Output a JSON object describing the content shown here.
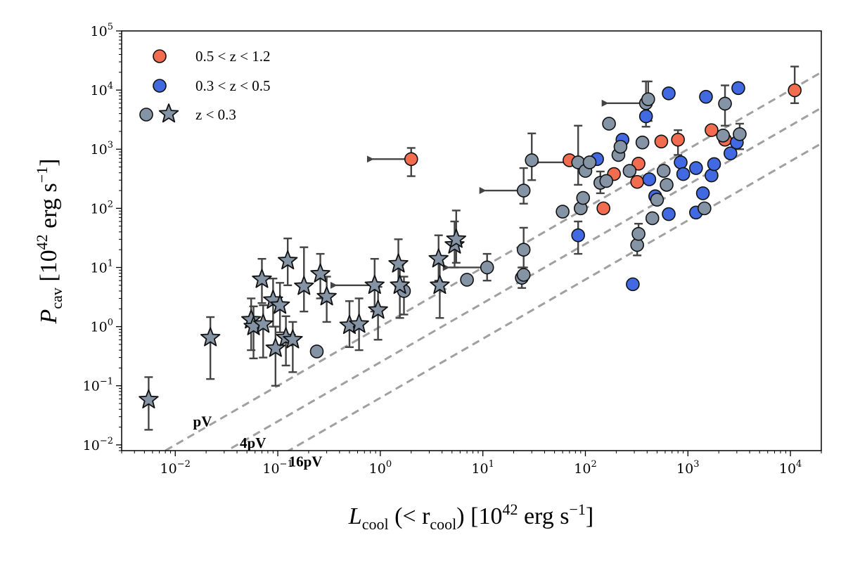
{
  "chart_data": {
    "type": "scatter",
    "xlabel": "L_cool (< r_cool) [10^42 erg s^-1]",
    "ylabel": "P_cav [10^42 erg s^-1]",
    "x_scale": "log",
    "y_scale": "log",
    "xlim": [
      0.003,
      20000
    ],
    "ylim": [
      0.008,
      100000
    ],
    "x_ticks": [
      {
        "value": 0.01,
        "base": "10",
        "exp": "−2"
      },
      {
        "value": 0.1,
        "base": "10",
        "exp": "−1"
      },
      {
        "value": 1,
        "base": "10",
        "exp": "0"
      },
      {
        "value": 10,
        "base": "10",
        "exp": "1"
      },
      {
        "value": 100,
        "base": "10",
        "exp": "2"
      },
      {
        "value": 1000,
        "base": "10",
        "exp": "3"
      },
      {
        "value": 10000,
        "base": "10",
        "exp": "4"
      }
    ],
    "y_ticks": [
      {
        "value": 0.01,
        "base": "10",
        "exp": "−2"
      },
      {
        "value": 0.1,
        "base": "10",
        "exp": "−1"
      },
      {
        "value": 1,
        "base": "10",
        "exp": "0"
      },
      {
        "value": 10,
        "base": "10",
        "exp": "1"
      },
      {
        "value": 100,
        "base": "10",
        "exp": "2"
      },
      {
        "value": 1000,
        "base": "10",
        "exp": "3"
      },
      {
        "value": 10000,
        "base": "10",
        "exp": "4"
      },
      {
        "value": 100000,
        "base": "10",
        "exp": "5"
      }
    ],
    "legend": {
      "position": "top-left",
      "entries": [
        {
          "label": "0.5 < z < 1.2",
          "marker": "circle",
          "color": "#f26c4f"
        },
        {
          "label": "0.3 < z < 0.5",
          "marker": "circle",
          "color": "#4169e1"
        },
        {
          "label": "z < 0.3",
          "marker": "circle+star",
          "color": "#8494a4"
        }
      ]
    },
    "reference_lines": [
      {
        "label": "pV",
        "factor": 1
      },
      {
        "label": "4pV",
        "factor": 4
      },
      {
        "label": "16pV",
        "factor": 16
      }
    ],
    "series": [
      {
        "name": "0.5 < z < 1.2",
        "marker": "circle",
        "color": "#f26c4f",
        "points": [
          {
            "x": 2,
            "y": 680,
            "ylo": 350,
            "yhi": 1050,
            "upper_limit_x": true
          },
          {
            "x": 70,
            "y": 650
          },
          {
            "x": 150,
            "y": 100
          },
          {
            "x": 190,
            "y": 380
          },
          {
            "x": 330,
            "y": 570
          },
          {
            "x": 320,
            "y": 280
          },
          {
            "x": 550,
            "y": 1350
          },
          {
            "x": 800,
            "y": 1450,
            "ylo": 800,
            "yhi": 2100
          },
          {
            "x": 1700,
            "y": 2100
          },
          {
            "x": 2300,
            "y": 1450
          },
          {
            "x": 11000,
            "y": 9900,
            "ylo": 6000,
            "yhi": 25000
          }
        ]
      },
      {
        "name": "0.3 < z < 0.5",
        "marker": "circle",
        "color": "#4169e1",
        "points": [
          {
            "x": 85,
            "y": 35,
            "ylo": 17,
            "yhi": 60
          },
          {
            "x": 130,
            "y": 680
          },
          {
            "x": 230,
            "y": 1450
          },
          {
            "x": 290,
            "y": 5.2
          },
          {
            "x": 390,
            "y": 3600
          },
          {
            "x": 420,
            "y": 310
          },
          {
            "x": 480,
            "y": 160
          },
          {
            "x": 650,
            "y": 8800
          },
          {
            "x": 650,
            "y": 80
          },
          {
            "x": 850,
            "y": 600
          },
          {
            "x": 900,
            "y": 380
          },
          {
            "x": 1200,
            "y": 480
          },
          {
            "x": 1200,
            "y": 85
          },
          {
            "x": 1400,
            "y": 180
          },
          {
            "x": 1500,
            "y": 7700
          },
          {
            "x": 1700,
            "y": 360
          },
          {
            "x": 1800,
            "y": 560
          },
          {
            "x": 2600,
            "y": 850
          },
          {
            "x": 3000,
            "y": 1300
          },
          {
            "x": 3100,
            "y": 10800
          }
        ]
      },
      {
        "name": "z < 0.3 (circles)",
        "marker": "circle",
        "color": "#8494a4",
        "points": [
          {
            "x": 0.24,
            "y": 0.38
          },
          {
            "x": 1.7,
            "y": 4.0,
            "ylo": 1.6,
            "yhi": 7
          },
          {
            "x": 7,
            "y": 6.2
          },
          {
            "x": 11,
            "y": 10,
            "ylo": 6,
            "yhi": 17,
            "upper_limit_x": true
          },
          {
            "x": 24,
            "y": 6.7,
            "ylo": 4.5,
            "yhi": 10
          },
          {
            "x": 25,
            "y": 7.5
          },
          {
            "x": 25,
            "y": 20,
            "ylo": 10,
            "yhi": 47
          },
          {
            "x": 25,
            "y": 200,
            "ylo": 120,
            "yhi": 480,
            "upper_limit_x": true
          },
          {
            "x": 30,
            "y": 650,
            "ylo": 300,
            "yhi": 1850
          },
          {
            "x": 60,
            "y": 88
          },
          {
            "x": 85,
            "y": 600,
            "ylo": 250,
            "yhi": 2500,
            "upper_limit_x": true
          },
          {
            "x": 90,
            "y": 100
          },
          {
            "x": 95,
            "y": 150
          },
          {
            "x": 100,
            "y": 430
          },
          {
            "x": 110,
            "y": 600
          },
          {
            "x": 140,
            "y": 270,
            "ylo": 180,
            "yhi": 420
          },
          {
            "x": 160,
            "y": 290
          },
          {
            "x": 170,
            "y": 2700
          },
          {
            "x": 210,
            "y": 800
          },
          {
            "x": 220,
            "y": 1100
          },
          {
            "x": 270,
            "y": 430
          },
          {
            "x": 320,
            "y": 24,
            "ylo": 16,
            "yhi": 33
          },
          {
            "x": 330,
            "y": 37,
            "ylo": 24,
            "yhi": 55
          },
          {
            "x": 360,
            "y": 1300
          },
          {
            "x": 390,
            "y": 6000,
            "ylo": 2400,
            "yhi": 14000,
            "upper_limit_x": true
          },
          {
            "x": 410,
            "y": 7000,
            "ylo": 3000,
            "yhi": 14000
          },
          {
            "x": 450,
            "y": 68
          },
          {
            "x": 500,
            "y": 140
          },
          {
            "x": 580,
            "y": 430
          },
          {
            "x": 620,
            "y": 250
          },
          {
            "x": 1450,
            "y": 100
          },
          {
            "x": 2200,
            "y": 1700
          },
          {
            "x": 2300,
            "y": 5900,
            "ylo": 2500,
            "yhi": 12000
          },
          {
            "x": 3200,
            "y": 1800,
            "ylo": 1000,
            "yhi": 2700
          }
        ]
      },
      {
        "name": "z < 0.3 (stars)",
        "marker": "star",
        "color": "#8494a4",
        "points": [
          {
            "x": 0.0055,
            "y": 0.058,
            "ylo": 0.018,
            "yhi": 0.14
          },
          {
            "x": 0.022,
            "y": 0.65,
            "ylo": 0.13,
            "yhi": 1.45
          },
          {
            "x": 0.055,
            "y": 1.3,
            "ylo": 0.4,
            "yhi": 3.0
          },
          {
            "x": 0.058,
            "y": 1.0,
            "ylo": 0.29,
            "yhi": 2.2
          },
          {
            "x": 0.07,
            "y": 6.3,
            "ylo": 2.5,
            "yhi": 14
          },
          {
            "x": 0.072,
            "y": 1.1,
            "ylo": 0.3,
            "yhi": 2.3
          },
          {
            "x": 0.09,
            "y": 2.8,
            "ylo": 1.0,
            "yhi": 6.5
          },
          {
            "x": 0.095,
            "y": 0.43,
            "ylo": 0.1,
            "yhi": 1.0
          },
          {
            "x": 0.105,
            "y": 2.3,
            "ylo": 0.8,
            "yhi": 5.5
          },
          {
            "x": 0.12,
            "y": 0.65,
            "ylo": 0.22,
            "yhi": 1.5
          },
          {
            "x": 0.125,
            "y": 13,
            "ylo": 5,
            "yhi": 31
          },
          {
            "x": 0.14,
            "y": 0.6,
            "ylo": 0.17,
            "yhi": 1.2
          },
          {
            "x": 0.18,
            "y": 4.8,
            "ylo": 1.8,
            "yhi": 22
          },
          {
            "x": 0.26,
            "y": 7.8,
            "ylo": 3,
            "yhi": 17
          },
          {
            "x": 0.3,
            "y": 3.2,
            "ylo": 1.2,
            "yhi": 7
          },
          {
            "x": 0.5,
            "y": 1.05,
            "ylo": 0.45,
            "yhi": 2.7
          },
          {
            "x": 0.62,
            "y": 1.1,
            "ylo": 0.4,
            "yhi": 3.0
          },
          {
            "x": 0.88,
            "y": 5.0,
            "ylo": 1.8,
            "yhi": 14,
            "upper_limit_x": true
          },
          {
            "x": 0.95,
            "y": 1.9,
            "ylo": 0.6,
            "yhi": 4.7
          },
          {
            "x": 1.5,
            "y": 11.5,
            "ylo": 4.8,
            "yhi": 30
          },
          {
            "x": 1.55,
            "y": 5.0,
            "ylo": 1.4,
            "yhi": 11
          },
          {
            "x": 3.7,
            "y": 14,
            "ylo": 6,
            "yhi": 35
          },
          {
            "x": 3.8,
            "y": 5.0,
            "ylo": 1.4,
            "yhi": 12
          },
          {
            "x": 5.3,
            "y": 24,
            "ylo": 10,
            "yhi": 60
          },
          {
            "x": 5.5,
            "y": 30,
            "ylo": 12,
            "yhi": 92
          }
        ]
      }
    ]
  },
  "labels": {
    "x_axis_main": "L",
    "x_axis_sub": "cool",
    "x_axis_mid": " (< r",
    "x_axis_sub2": "cool",
    "x_axis_tail": ") [10",
    "x_axis_exp": "42",
    "x_axis_unit": " erg s",
    "x_axis_unit_exp": "−1",
    "x_axis_close": "]",
    "y_axis_main": "P",
    "y_axis_sub": "cav",
    "y_axis_tail": " [10",
    "y_axis_exp": "42",
    "y_axis_unit": " erg s",
    "y_axis_unit_exp": "−1",
    "y_axis_close": "]"
  }
}
